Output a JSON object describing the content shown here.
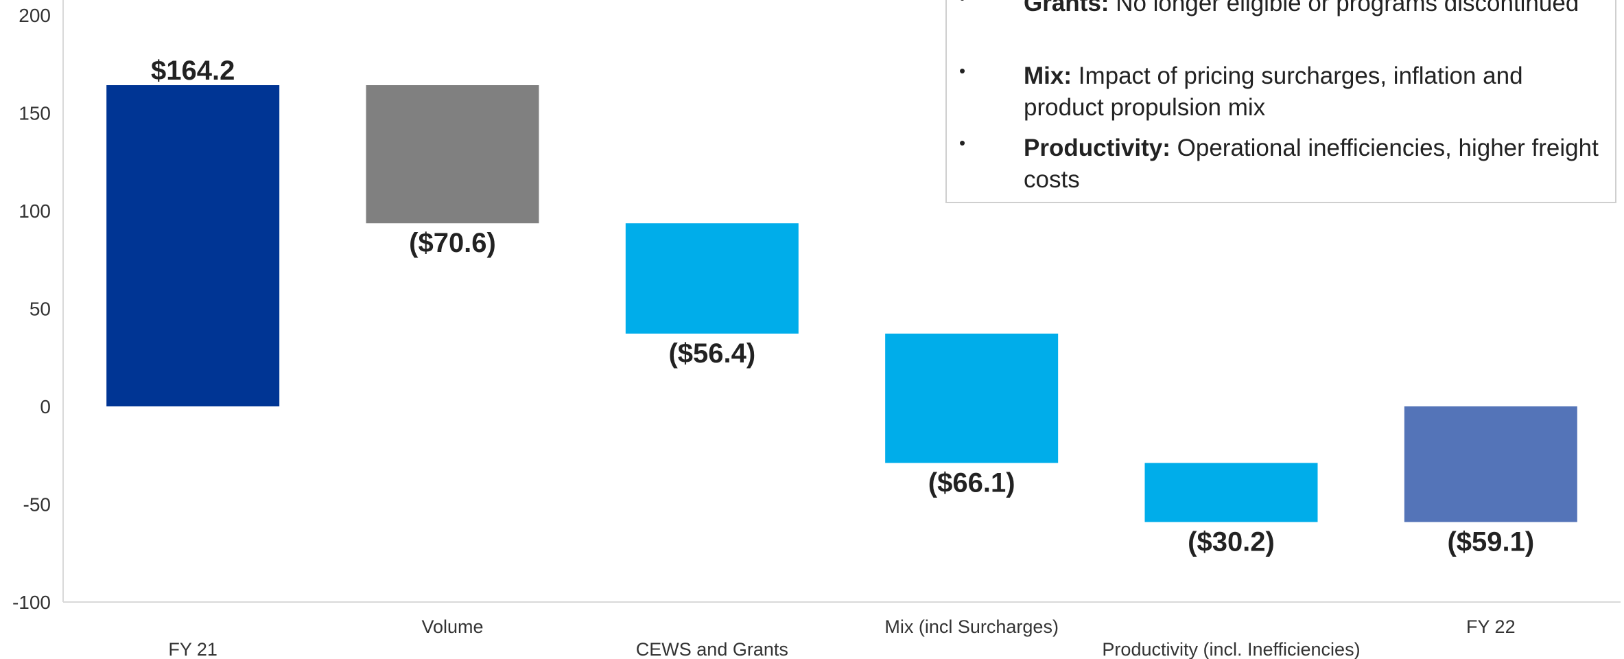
{
  "chart_data": {
    "type": "bar",
    "subtype": "waterfall",
    "categories": [
      "FY 21",
      "Volume",
      "CEWS and Grants",
      "Mix (incl Surcharges)",
      "Productivity (incl. Inefficiencies)",
      "FY 22"
    ],
    "values": [
      164.2,
      -70.6,
      -56.4,
      -66.1,
      -30.2,
      -59.1
    ],
    "bar_kind": [
      "total",
      "change",
      "change",
      "change",
      "change",
      "total"
    ],
    "data_labels": [
      "$164.2",
      "($70.6)",
      "($56.4)",
      "($66.1)",
      "($30.2)",
      "($59.1)"
    ],
    "colors": [
      "#003594",
      "#808080",
      "#00ADEA",
      "#00ADEA",
      "#00ADEA",
      "#5474B8"
    ],
    "ylim": [
      -100,
      200
    ],
    "yticks": [
      -100,
      -50,
      0,
      50,
      100,
      150,
      200
    ],
    "title": "",
    "xlabel": "",
    "ylabel": "",
    "grid": false,
    "legend": "none"
  },
  "notes": [
    {
      "heading": "Grants:",
      "text": " No longer eligible or programs discontinued"
    },
    {
      "heading": "Mix:",
      "text": " Impact of pricing surcharges, inflation and product propulsion mix"
    },
    {
      "heading": "Productivity:",
      "text": " Operational inefficiencies, higher freight costs"
    }
  ],
  "bullet_char": "•"
}
